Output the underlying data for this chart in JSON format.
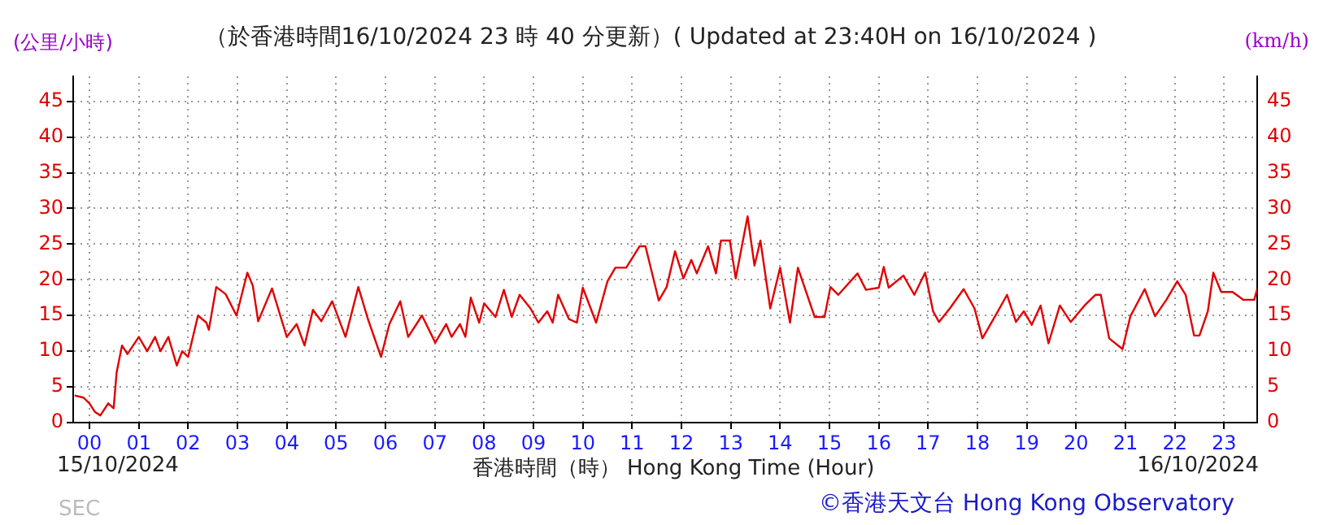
{
  "chart_data": {
    "type": "line",
    "title": "（於香港時間16/10/2024 23 時 40 分更新）( Updated at 23:40H on 16/10/2024 )",
    "ylabel": "(公里/小時)",
    "y2label": "(km/h)",
    "xlabel": "香港時間（時） Hong Kong Time (Hour)",
    "annotations": [
      "15/10/2024",
      "16/10/2024",
      "©香港天文台 Hong Kong Observatory",
      "SEC"
    ],
    "x": [
      -0.3,
      -0.12,
      0,
      0.11,
      0.22,
      0.38,
      0.49,
      0.55,
      0.66,
      0.77,
      1.0,
      1.17,
      1.33,
      1.44,
      1.6,
      1.77,
      1.88,
      2.0,
      2.2,
      2.37,
      2.42,
      2.57,
      2.76,
      2.98,
      3.2,
      3.31,
      3.42,
      3.7,
      4.0,
      4.2,
      4.36,
      4.53,
      4.7,
      4.92,
      5.19,
      5.45,
      5.64,
      5.91,
      6.08,
      6.3,
      6.46,
      6.74,
      7.01,
      7.23,
      7.34,
      7.51,
      7.62,
      7.73,
      7.9,
      8.0,
      8.23,
      8.4,
      8.56,
      8.72,
      8.94,
      9.1,
      9.28,
      9.39,
      9.5,
      9.72,
      9.88,
      10.0,
      10.27,
      10.5,
      10.66,
      10.88,
      11.15,
      11.27,
      11.54,
      11.7,
      11.87,
      12.04,
      12.2,
      12.31,
      12.54,
      12.7,
      12.8,
      12.98,
      13.1,
      13.34,
      13.48,
      13.6,
      13.8,
      14.0,
      14.2,
      14.36,
      14.7,
      14.9,
      15.02,
      15.18,
      15.57,
      15.74,
      16.0,
      16.1,
      16.2,
      16.5,
      16.72,
      16.94,
      17.1,
      17.22,
      17.44,
      17.72,
      17.94,
      18.1,
      18.39,
      18.6,
      18.78,
      18.94,
      19.1,
      19.28,
      19.44,
      19.67,
      19.89,
      20.17,
      20.39,
      20.5,
      20.67,
      20.94,
      21.1,
      21.39,
      21.6,
      21.83,
      22.05,
      22.22,
      22.39,
      22.5,
      22.67,
      22.78,
      22.94,
      23.17,
      23.39,
      23.61,
      23.67
    ],
    "series": [
      {
        "color": "#e00000",
        "values": [
          3.8,
          3.5,
          2.7,
          1.5,
          1,
          2.7,
          2,
          7,
          10.8,
          9.6,
          12,
          10,
          12,
          10,
          12,
          8,
          10,
          9.2,
          15,
          14,
          13,
          19,
          18,
          15,
          21,
          19.2,
          14.2,
          18.8,
          12,
          13.8,
          10.8,
          15.8,
          14.2,
          17,
          12,
          19,
          14.6,
          9.2,
          13.8,
          17,
          12,
          15,
          11.2,
          13.8,
          12,
          13.8,
          12,
          17.5,
          14,
          16.7,
          14.8,
          18.6,
          14.8,
          17.9,
          16,
          14,
          15.6,
          14,
          17.9,
          14.5,
          14,
          18.9,
          14,
          19.8,
          21.7,
          21.7,
          24.7,
          24.7,
          17.1,
          19,
          24,
          20.2,
          22.8,
          20.9,
          24.7,
          20.9,
          25.5,
          25.5,
          20.2,
          28.9,
          22,
          25.5,
          16,
          21.7,
          14,
          21.7,
          14.8,
          14.8,
          19,
          17.9,
          20.9,
          18.6,
          18.9,
          21.8,
          18.9,
          20.6,
          17.9,
          21,
          15.6,
          14.1,
          16,
          18.7,
          16,
          11.8,
          15.3,
          17.9,
          14.1,
          15.6,
          13.7,
          16.4,
          11.1,
          16.4,
          14.1,
          16.4,
          17.9,
          17.9,
          11.8,
          10.3,
          14.9,
          18.7,
          14.9,
          17.2,
          19.8,
          17.9,
          12.2,
          12.2,
          15.6,
          21,
          18.3,
          18.3,
          17.2,
          17.2,
          18.7
        ]
      }
    ],
    "xlim": [
      -0.33,
      23.67
    ],
    "xticks": [
      {
        "value": 0,
        "label": "00"
      },
      {
        "value": 1,
        "label": "01"
      },
      {
        "value": 2,
        "label": "02"
      },
      {
        "value": 3,
        "label": "03"
      },
      {
        "value": 4,
        "label": "04"
      },
      {
        "value": 5,
        "label": "05"
      },
      {
        "value": 6,
        "label": "06"
      },
      {
        "value": 7,
        "label": "07"
      },
      {
        "value": 8,
        "label": "08"
      },
      {
        "value": 9,
        "label": "09"
      },
      10,
      11,
      12,
      13,
      14,
      15,
      16,
      17,
      18,
      19,
      20,
      21,
      22,
      23
    ],
    "ylim": [
      0,
      48.5
    ],
    "yticks": [
      0,
      5,
      10,
      15,
      20,
      25,
      30,
      35,
      40,
      45
    ],
    "y2lim": [
      0,
      48.5
    ],
    "y2ticks": [
      0,
      5,
      10,
      15,
      20,
      25,
      30,
      35,
      40,
      45
    ],
    "grid": true,
    "legend": false,
    "marker": "none",
    "line_style": "solid"
  }
}
